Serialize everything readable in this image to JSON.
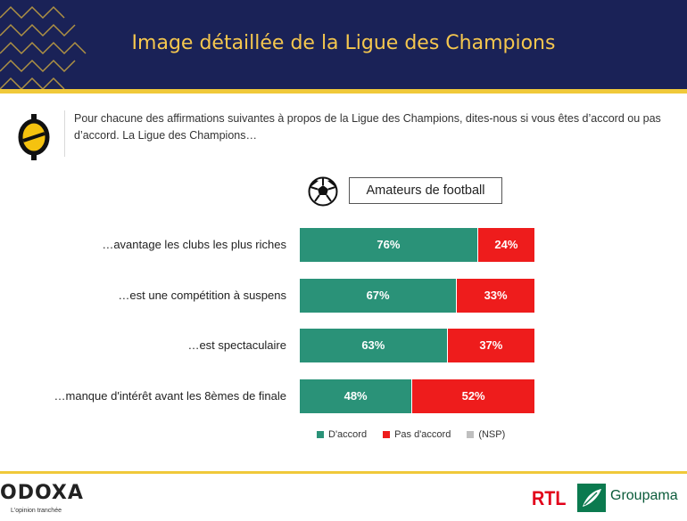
{
  "header": {
    "title": "Image détaillée de la Ligue des Champions"
  },
  "question": "Pour chacune des affirmations suivantes à propos de la Ligue des Champions, dites-nous si vous êtes d’accord ou pas d’accord. La Ligue des Champions…",
  "segment_label": "Amateurs de football",
  "colors": {
    "agree": "#2a9278",
    "disagree": "#ee1c1c",
    "nsp": "#bfbfbf",
    "header": "#1a2257",
    "accent": "#f0c93a"
  },
  "chart_data": {
    "type": "bar",
    "orientation": "horizontal",
    "stacked": true,
    "categories": [
      "…avantage les clubs les plus riches",
      "…est une compétition à suspens",
      "…est spectaculaire",
      "…manque d'intérêt avant les 8èmes de finale"
    ],
    "series": [
      {
        "name": "D'accord",
        "values": [
          76,
          67,
          63,
          48
        ],
        "labels": [
          "76%",
          "67%",
          "63%",
          "48%"
        ]
      },
      {
        "name": "Pas d'accord",
        "values": [
          24,
          33,
          37,
          52
        ],
        "labels": [
          "24%",
          "33%",
          "37%",
          "52%"
        ]
      },
      {
        "name": "(NSP)",
        "values": [
          0,
          0,
          0,
          0
        ]
      }
    ],
    "xlim": [
      0,
      100
    ],
    "legend": "bottom"
  },
  "legend": {
    "agree": "D'accord",
    "disagree": "Pas d'accord",
    "nsp": "(NSP)"
  },
  "footer": {
    "brand": "ODOXA",
    "tagline": "L'opinion tranchée",
    "partner1": "RTL",
    "partner2": "Groupama"
  }
}
